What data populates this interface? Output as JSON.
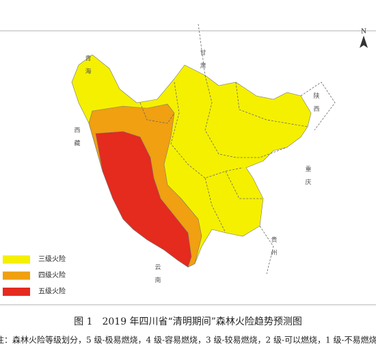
{
  "map": {
    "north_label": "N",
    "neighbor_labels": [
      "青海",
      "甘肃",
      "陕西",
      "重庆",
      "贵州",
      "云南",
      "西藏"
    ],
    "legend": [
      {
        "label": "三级火险",
        "color": "#f5f000"
      },
      {
        "label": "四级火险",
        "color": "#f0a010"
      },
      {
        "label": "五级火险",
        "color": "#e52a1e"
      }
    ]
  },
  "caption": "图 1　2019 年四川省“清明期间”森林火险趋势预测图",
  "note": "注：森林火险等级划分，5 级-极易燃烧，4 级-容易燃烧，3 级-较易燃烧，2 级-可以燃烧，1 级-不易燃烧"
}
